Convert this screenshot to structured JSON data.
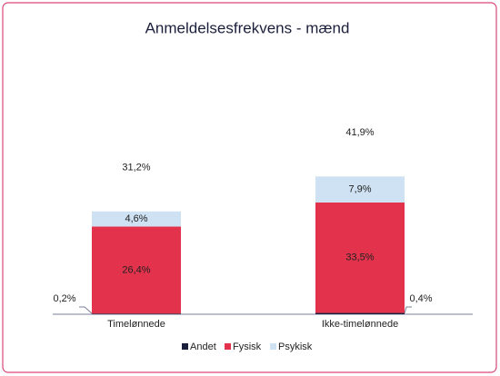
{
  "chart_data": {
    "type": "stacked-bar",
    "title": "Anmeldelsesfrekvens - mænd",
    "categories": [
      "Timelønnede",
      "Ikke-timelønnede"
    ],
    "series": [
      {
        "name": "Andet",
        "color": "#1b1f3b",
        "values": [
          0.2,
          0.4
        ],
        "value_labels": [
          "0,2%",
          "0,4%"
        ]
      },
      {
        "name": "Fysisk",
        "color": "#e2324c",
        "values": [
          26.4,
          33.5
        ],
        "value_labels": [
          "26,4%",
          "33,5%"
        ]
      },
      {
        "name": "Psykisk",
        "color": "#cfe2f3",
        "values": [
          4.6,
          7.9
        ],
        "value_labels": [
          "4,6%",
          "7,9%"
        ]
      }
    ],
    "totals": [
      31.2,
      41.9
    ],
    "total_labels": [
      "31,2%",
      "41,9%"
    ],
    "legend": "bottom"
  }
}
